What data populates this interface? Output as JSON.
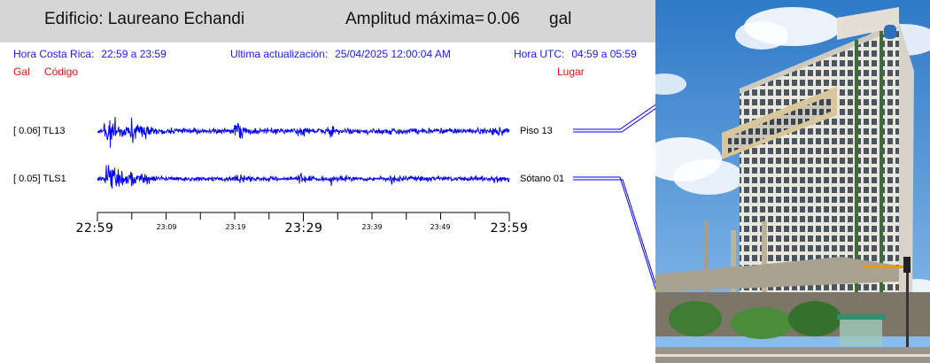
{
  "header": {
    "building": "Edificio: Laureano Echandi",
    "amplitude_label": "Amplitud máxima=",
    "amplitude_value": "0.06",
    "amplitude_unit": "gal"
  },
  "info": {
    "local_label": "Hora Costa Rica:",
    "local_value": "22:59 a 23:59",
    "update_label": "Ultima actualización:",
    "update_value": "25/04/2025 12:00:04 AM",
    "utc_label": "Hora UTC:",
    "utc_value": "04:59 a 05:59"
  },
  "columns": {
    "gal": "Gal",
    "code": "Código",
    "place": "Lugar"
  },
  "channels": [
    {
      "label": "[   0.06] TL13",
      "place": "Piso 13"
    },
    {
      "label": "[   0.05] TLS1",
      "place": "Sótano 01"
    }
  ],
  "time_axis": {
    "major": [
      "22:59",
      "23:29",
      "23:59"
    ],
    "minor": [
      "23:09",
      "23:19",
      "23:39",
      "23:49"
    ]
  },
  "colors": {
    "trace": "#0000ff",
    "info": "#1a1aff",
    "column_head": "#e01010",
    "header_bg": "#d6d6d6"
  }
}
